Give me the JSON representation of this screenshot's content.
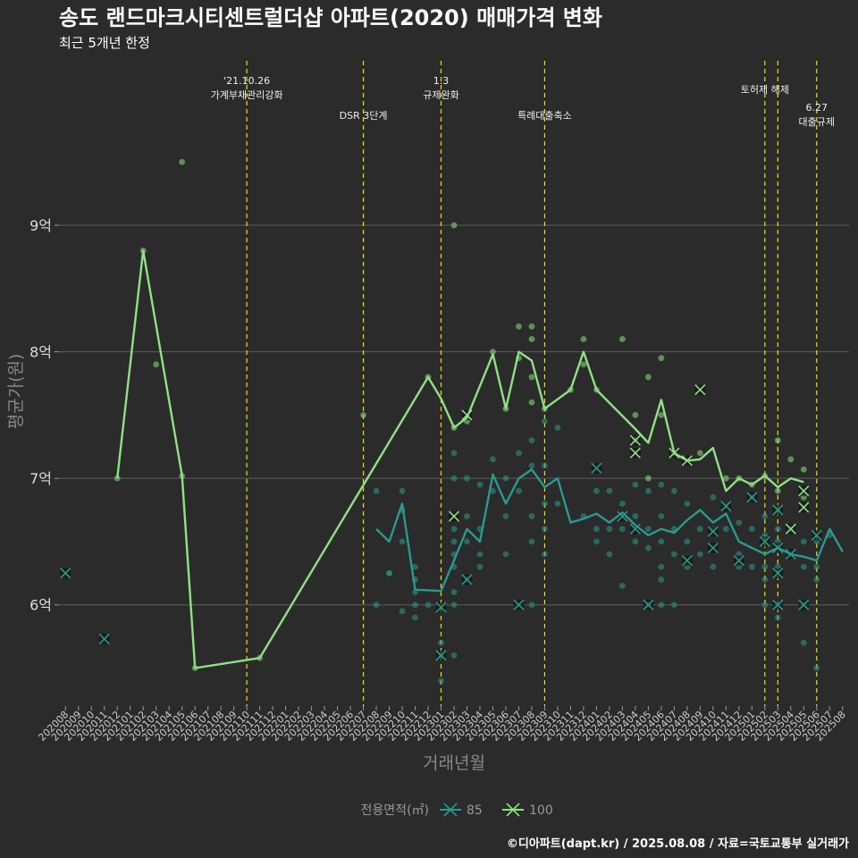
{
  "chart_data": {
    "type": "line",
    "title": "송도 랜드마크시티센트럴더샵 아파트(2020) 매매가격 변화",
    "subtitle": "최근 5개년 한정",
    "xlabel": "거래년월",
    "ylabel": "평균가(원)",
    "credit": "©디아파트(dapt.kr) / 2025.08.08 / 자료=국토교통부 실거래가",
    "y_ticks": [
      {
        "value": 6,
        "label": "6억"
      },
      {
        "value": 7,
        "label": "7억"
      },
      {
        "value": 8,
        "label": "8억"
      },
      {
        "value": 9,
        "label": "9억"
      }
    ],
    "ylim": [
      5.2,
      10.3
    ],
    "categories": [
      "202008",
      "202009",
      "202010",
      "202011",
      "202012",
      "202101",
      "202102",
      "202103",
      "202104",
      "202105",
      "202106",
      "202107",
      "202108",
      "202109",
      "202110",
      "202111",
      "202112",
      "202201",
      "202202",
      "202203",
      "202204",
      "202205",
      "202206",
      "202207",
      "202208",
      "202209",
      "202210",
      "202211",
      "202212",
      "202301",
      "202302",
      "202303",
      "202304",
      "202305",
      "202306",
      "202307",
      "202308",
      "202309",
      "202310",
      "202311",
      "202312",
      "202401",
      "202402",
      "202403",
      "202404",
      "202405",
      "202406",
      "202407",
      "202408",
      "202409",
      "202410",
      "202411",
      "202412",
      "202501",
      "202502",
      "202503",
      "202504",
      "202505",
      "202506",
      "202507",
      "202508"
    ],
    "legend_title": "전용면적(㎡)",
    "grid": true,
    "events": [
      {
        "month": "202110",
        "lines": [
          "'21.10.26",
          "가계부채관리강화"
        ],
        "level": 1
      },
      {
        "month": "202207",
        "lines": [
          "DSR 3단계"
        ],
        "level": 3
      },
      {
        "month": "202301",
        "lines": [
          "1.3",
          "규제완화"
        ],
        "level": 1
      },
      {
        "month": "202309",
        "lines": [
          "특례대출축소"
        ],
        "level": 3
      },
      {
        "month": "202502",
        "lines": [
          "토허제 해제"
        ],
        "level": 2
      },
      {
        "month": "202503",
        "lines": [],
        "level": 0
      },
      {
        "month": "202506",
        "lines": [
          "6.27",
          "대출규제"
        ],
        "level": 4
      }
    ],
    "series": [
      {
        "name": "85",
        "color": "#2a9a8e",
        "line": [
          [
            "202208",
            6.6
          ],
          [
            "202209",
            6.5
          ],
          [
            "202210",
            6.8
          ],
          [
            "202211",
            6.12
          ],
          [
            "202301",
            6.11
          ],
          [
            "202302",
            6.35
          ],
          [
            "202303",
            6.6
          ],
          [
            "202304",
            6.5
          ],
          [
            "202305",
            7.03
          ],
          [
            "202306",
            6.8
          ],
          [
            "202307",
            7.0
          ],
          [
            "202308",
            7.07
          ],
          [
            "202309",
            6.93
          ],
          [
            "202310",
            7.0
          ],
          [
            "202311",
            6.65
          ],
          [
            "202312",
            6.68
          ],
          [
            "202401",
            6.72
          ],
          [
            "202402",
            6.65
          ],
          [
            "202403",
            6.73
          ],
          [
            "202404",
            6.63
          ],
          [
            "202405",
            6.55
          ],
          [
            "202406",
            6.6
          ],
          [
            "202407",
            6.57
          ],
          [
            "202408",
            6.67
          ],
          [
            "202409",
            6.75
          ],
          [
            "202410",
            6.65
          ],
          [
            "202411",
            6.72
          ],
          [
            "202412",
            6.5
          ],
          [
            "202501",
            6.45
          ],
          [
            "202502",
            6.4
          ],
          [
            "202503",
            6.45
          ],
          [
            "202504",
            6.4
          ],
          [
            "202505",
            6.38
          ],
          [
            "202506",
            6.35
          ],
          [
            "202507",
            6.6
          ],
          [
            "202508",
            6.42
          ]
        ],
        "points": [
          [
            "202209",
            6.25
          ],
          [
            "202210",
            6.75
          ],
          [
            "202210",
            6.5
          ],
          [
            "202210",
            5.95
          ],
          [
            "202209",
            6.25
          ],
          [
            "202303",
            6.2
          ],
          [
            "202308",
            6.0
          ],
          [
            "202405",
            6.0
          ],
          [
            "202501",
            6.85
          ],
          [
            "202503",
            6.75
          ],
          [
            "202503",
            6.5
          ],
          [
            "202503",
            6.0
          ],
          [
            "202505",
            6.0
          ],
          [
            "202208",
            6.9
          ],
          [
            "202208",
            6.0
          ],
          [
            "202210",
            6.9
          ],
          [
            "202211",
            6.3
          ],
          [
            "202211",
            6.2
          ],
          [
            "202211",
            6.1
          ],
          [
            "202211",
            5.9
          ],
          [
            "202211",
            6.0
          ],
          [
            "202212",
            6.0
          ],
          [
            "202301",
            5.7
          ],
          [
            "202301",
            5.6
          ],
          [
            "202301",
            5.4
          ],
          [
            "202302",
            6.6
          ],
          [
            "202302",
            6.5
          ],
          [
            "202302",
            6.4
          ],
          [
            "202302",
            6.3
          ],
          [
            "202302",
            6.1
          ],
          [
            "202302",
            6.0
          ],
          [
            "202302",
            5.6
          ],
          [
            "202302",
            7.0
          ],
          [
            "202302",
            7.2
          ],
          [
            "202303",
            7.0
          ],
          [
            "202303",
            6.7
          ],
          [
            "202303",
            6.5
          ],
          [
            "202304",
            6.95
          ],
          [
            "202304",
            6.6
          ],
          [
            "202304",
            6.4
          ],
          [
            "202304",
            6.3
          ],
          [
            "202305",
            7.15
          ],
          [
            "202305",
            6.9
          ],
          [
            "202306",
            7.0
          ],
          [
            "202306",
            6.7
          ],
          [
            "202306",
            6.4
          ],
          [
            "202307",
            7.2
          ],
          [
            "202307",
            6.9
          ],
          [
            "202308",
            7.3
          ],
          [
            "202308",
            7.1
          ],
          [
            "202308",
            6.7
          ],
          [
            "202308",
            6.5
          ],
          [
            "202309",
            7.45
          ],
          [
            "202309",
            7.1
          ],
          [
            "202309",
            6.8
          ],
          [
            "202309",
            6.6
          ],
          [
            "202309",
            6.4
          ],
          [
            "202310",
            7.4
          ],
          [
            "202310",
            6.8
          ],
          [
            "202312",
            6.7
          ],
          [
            "202401",
            6.9
          ],
          [
            "202401",
            6.6
          ],
          [
            "202401",
            6.5
          ],
          [
            "202402",
            6.9
          ],
          [
            "202402",
            6.6
          ],
          [
            "202402",
            6.4
          ],
          [
            "202403",
            6.8
          ],
          [
            "202403",
            6.6
          ],
          [
            "202403",
            6.15
          ],
          [
            "202404",
            6.95
          ],
          [
            "202404",
            6.7
          ],
          [
            "202404",
            6.5
          ],
          [
            "202405",
            6.9
          ],
          [
            "202405",
            6.6
          ],
          [
            "202405",
            6.45
          ],
          [
            "202406",
            6.95
          ],
          [
            "202406",
            6.7
          ],
          [
            "202406",
            6.5
          ],
          [
            "202406",
            6.3
          ],
          [
            "202406",
            6.2
          ],
          [
            "202406",
            6.0
          ],
          [
            "202407",
            6.9
          ],
          [
            "202407",
            6.6
          ],
          [
            "202407",
            6.4
          ],
          [
            "202407",
            6.0
          ],
          [
            "202408",
            6.8
          ],
          [
            "202408",
            6.5
          ],
          [
            "202408",
            6.3
          ],
          [
            "202409",
            6.6
          ],
          [
            "202409",
            6.4
          ],
          [
            "202410",
            6.85
          ],
          [
            "202410",
            6.6
          ],
          [
            "202410",
            6.3
          ],
          [
            "202411",
            6.8
          ],
          [
            "202411",
            6.6
          ],
          [
            "202412",
            6.65
          ],
          [
            "202412",
            6.4
          ],
          [
            "202412",
            6.3
          ],
          [
            "202501",
            6.6
          ],
          [
            "202501",
            6.3
          ],
          [
            "202502",
            6.7
          ],
          [
            "202502",
            6.55
          ],
          [
            "202502",
            6.3
          ],
          [
            "202502",
            6.2
          ],
          [
            "202502",
            6.0
          ],
          [
            "202503",
            6.6
          ],
          [
            "202503",
            6.3
          ],
          [
            "202503",
            5.9
          ],
          [
            "202504",
            6.6
          ],
          [
            "202504",
            6.4
          ],
          [
            "202505",
            6.5
          ],
          [
            "202505",
            6.3
          ],
          [
            "202505",
            5.7
          ],
          [
            "202506",
            6.5
          ],
          [
            "202506",
            6.3
          ],
          [
            "202506",
            6.2
          ],
          [
            "202506",
            5.5
          ],
          [
            "202507",
            6.55
          ]
        ],
        "x_markers": [
          [
            "202008",
            6.25
          ],
          [
            "202011",
            5.73
          ],
          [
            "202301",
            5.98
          ],
          [
            "202301",
            5.6
          ],
          [
            "202303",
            6.2
          ],
          [
            "202307",
            6.0
          ],
          [
            "202401",
            7.08
          ],
          [
            "202403",
            6.7
          ],
          [
            "202404",
            6.6
          ],
          [
            "202405",
            6.0
          ],
          [
            "202408",
            6.35
          ],
          [
            "202410",
            6.58
          ],
          [
            "202410",
            6.45
          ],
          [
            "202411",
            6.78
          ],
          [
            "202412",
            6.35
          ],
          [
            "202501",
            6.85
          ],
          [
            "202502",
            6.5
          ],
          [
            "202503",
            6.75
          ],
          [
            "202503",
            6.45
          ],
          [
            "202503",
            6.25
          ],
          [
            "202503",
            6.0
          ],
          [
            "202504",
            6.4
          ],
          [
            "202505",
            6.0
          ],
          [
            "202506",
            6.55
          ]
        ]
      },
      {
        "name": "100",
        "color": "#90e085",
        "line": [
          [
            "202012",
            7.0
          ],
          [
            "202102",
            8.8
          ],
          [
            "202105",
            7.02
          ],
          [
            "202106",
            5.5
          ],
          [
            "202111",
            5.58
          ],
          [
            "202212",
            7.8
          ],
          [
            "202301",
            7.63
          ],
          [
            "202302",
            7.4
          ],
          [
            "202303",
            7.48
          ],
          [
            "202305",
            7.98
          ],
          [
            "202306",
            7.55
          ],
          [
            "202307",
            8.0
          ],
          [
            "202308",
            7.93
          ],
          [
            "202309",
            7.55
          ],
          [
            "202311",
            7.7
          ],
          [
            "202312",
            8.0
          ],
          [
            "202401",
            7.7
          ],
          [
            "202404",
            7.39
          ],
          [
            "202405",
            7.28
          ],
          [
            "202406",
            7.62
          ],
          [
            "202407",
            7.2
          ],
          [
            "202408",
            7.14
          ],
          [
            "202409",
            7.15
          ],
          [
            "202410",
            7.24
          ],
          [
            "202411",
            6.9
          ],
          [
            "202412",
            7.0
          ],
          [
            "202501",
            6.95
          ],
          [
            "202502",
            7.02
          ],
          [
            "202503",
            6.93
          ],
          [
            "202504",
            7.0
          ],
          [
            "202505",
            6.97
          ]
        ],
        "points": [
          [
            "202012",
            7.0
          ],
          [
            "202102",
            8.8
          ],
          [
            "202105",
            7.02
          ],
          [
            "202106",
            5.5
          ],
          [
            "202111",
            5.58
          ],
          [
            "202103",
            7.9
          ],
          [
            "202105",
            9.5
          ],
          [
            "202207",
            7.5
          ],
          [
            "202212",
            7.8
          ],
          [
            "202302",
            9.0
          ],
          [
            "202302",
            7.4
          ],
          [
            "202303",
            7.45
          ],
          [
            "202305",
            8.0
          ],
          [
            "202306",
            7.55
          ],
          [
            "202307",
            8.2
          ],
          [
            "202307",
            7.95
          ],
          [
            "202308",
            8.2
          ],
          [
            "202308",
            8.1
          ],
          [
            "202308",
            7.8
          ],
          [
            "202308",
            7.6
          ],
          [
            "202309",
            7.55
          ],
          [
            "202311",
            7.7
          ],
          [
            "202312",
            8.1
          ],
          [
            "202312",
            7.9
          ],
          [
            "202401",
            7.7
          ],
          [
            "202403",
            8.1
          ],
          [
            "202404",
            7.5
          ],
          [
            "202404",
            7.3
          ],
          [
            "202405",
            7.8
          ],
          [
            "202405",
            7.0
          ],
          [
            "202406",
            7.95
          ],
          [
            "202406",
            7.5
          ],
          [
            "202407",
            7.2
          ],
          [
            "202409",
            7.2
          ],
          [
            "202411",
            7.0
          ],
          [
            "202412",
            7.0
          ],
          [
            "202501",
            6.95
          ],
          [
            "202502",
            7.02
          ],
          [
            "202503",
            7.3
          ],
          [
            "202503",
            6.9
          ],
          [
            "202504",
            7.15
          ],
          [
            "202505",
            6.85
          ],
          [
            "202505",
            7.07
          ]
        ],
        "x_markers": [
          [
            "202302",
            6.7
          ],
          [
            "202303",
            7.5
          ],
          [
            "202404",
            7.3
          ],
          [
            "202404",
            7.2
          ],
          [
            "202407",
            7.2
          ],
          [
            "202408",
            7.14
          ],
          [
            "202409",
            7.7
          ],
          [
            "202504",
            6.6
          ],
          [
            "202505",
            6.9
          ],
          [
            "202505",
            6.77
          ]
        ]
      }
    ]
  }
}
